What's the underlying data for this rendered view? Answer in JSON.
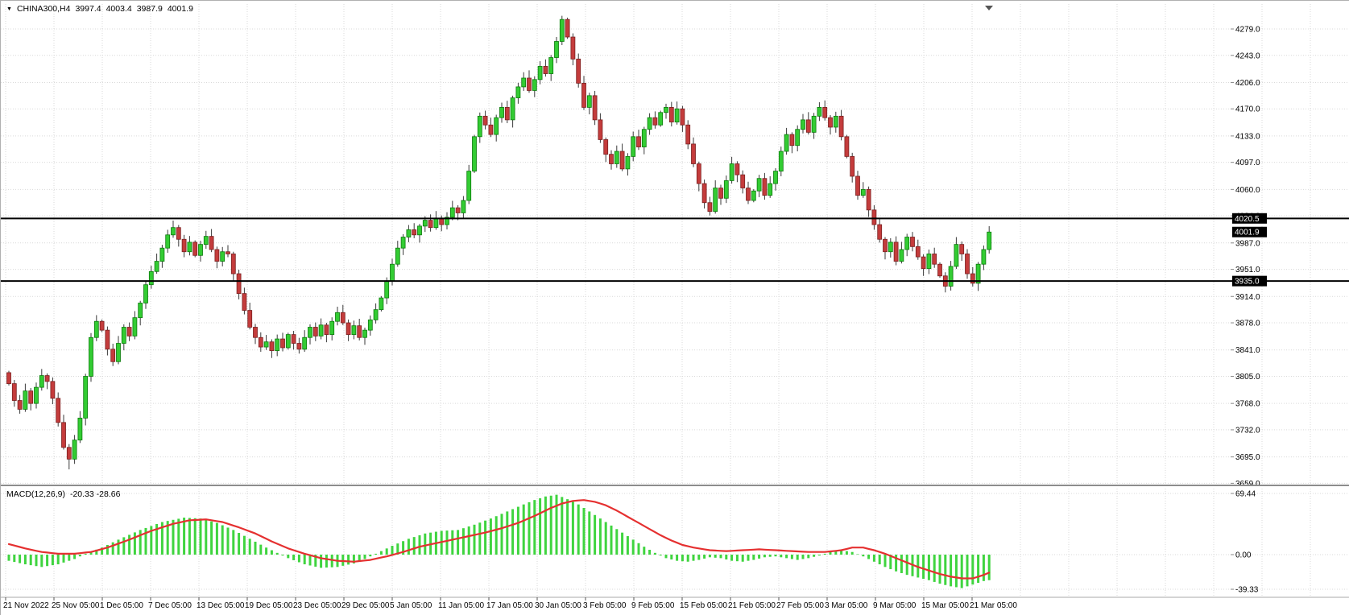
{
  "header": {
    "symbol": "CHINA300,H4",
    "open": "3997.4",
    "high": "4003.4",
    "low": "3987.9",
    "close": "4001.9"
  },
  "icons": {
    "dropdown": "▼"
  },
  "colors": {
    "background": "#ffffff",
    "grid": "#d9d9d9",
    "candle_up": "#33cc33",
    "candle_up_border": "#0b7a0b",
    "candle_down": "#c43c3c",
    "candle_down_border": "#7a1f1f",
    "wick": "#3a3a3a",
    "hline": "#000000",
    "badge_bg": "#000000",
    "badge_text": "#ffffff",
    "macd_histogram": "#3fd43f",
    "macd_signal": "#e53030",
    "text": "#000000",
    "separator": "#8c8c8c"
  },
  "chart_data": {
    "type": "candlestick",
    "title": "CHINA300,H4",
    "timeframe": "H4",
    "open_first": 3810,
    "closes": [
      3795,
      3772,
      3760,
      3785,
      3768,
      3790,
      3806,
      3798,
      3775,
      3742,
      3708,
      3692,
      3718,
      3748,
      3805,
      3858,
      3880,
      3868,
      3842,
      3825,
      3850,
      3872,
      3860,
      3885,
      3905,
      3930,
      3948,
      3962,
      3980,
      3998,
      4008,
      3992,
      3975,
      3988,
      3970,
      3985,
      3996,
      3978,
      3962,
      3975,
      3972,
      3945,
      3918,
      3895,
      3872,
      3858,
      3845,
      3852,
      3840,
      3856,
      3844,
      3862,
      3850,
      3842,
      3858,
      3872,
      3860,
      3875,
      3862,
      3880,
      3892,
      3878,
      3862,
      3874,
      3858,
      3868,
      3882,
      3896,
      3912,
      3935,
      3958,
      3980,
      3995,
      4005,
      3998,
      4010,
      4018,
      4008,
      4020,
      4012,
      4022,
      4035,
      4028,
      4045,
      4085,
      4132,
      4160,
      4148,
      4135,
      4158,
      4172,
      4155,
      4185,
      4200,
      4212,
      4195,
      4210,
      4228,
      4218,
      4240,
      4262,
      4292,
      4268,
      4238,
      4205,
      4172,
      4188,
      4155,
      4128,
      4108,
      4095,
      4112,
      4088,
      4105,
      4132,
      4118,
      4142,
      4158,
      4148,
      4165,
      4172,
      4152,
      4170,
      4148,
      4122,
      4095,
      4068,
      4042,
      4030,
      4062,
      4048,
      4072,
      4095,
      4080,
      4062,
      4045,
      4058,
      4075,
      4052,
      4068,
      4085,
      4112,
      4135,
      4120,
      4142,
      4155,
      4138,
      4160,
      4172,
      4158,
      4145,
      4160,
      4132,
      4105,
      4078,
      4052,
      4060,
      4032,
      4012,
      3992,
      3975,
      3988,
      3962,
      3978,
      3995,
      3982,
      3968,
      3952,
      3972,
      3958,
      3942,
      3928,
      3955,
      3985,
      3972,
      3945,
      3932,
      3958,
      3978,
      4001.9
    ],
    "wick_overrides": {
      "11": {
        "low": 3678
      },
      "101": {
        "high": 4297
      }
    },
    "price_axis": {
      "ticks": [
        4279,
        4243,
        4206,
        4170,
        4133,
        4097,
        4060,
        4024,
        3987,
        3951,
        3914,
        3878,
        3841,
        3805,
        3768,
        3732,
        3695,
        3659
      ]
    },
    "time_axis": {
      "labels": [
        "21 Nov 2022",
        "25 Nov 05:00",
        "1 Dec 05:00",
        "7 Dec 05:00",
        "13 Dec 05:00",
        "19 Dec 05:00",
        "23 Dec 05:00",
        "29 Dec 05:00",
        "5 Jan 05:00",
        "11 Jan 05:00",
        "17 Jan 05:00",
        "30 Jan 05:00",
        "3 Feb 05:00",
        "9 Feb 05:00",
        "15 Feb 05:00",
        "21 Feb 05:00",
        "27 Feb 05:00",
        "3 Mar 05:00",
        "9 Mar 05:00",
        "15 Mar 05:00",
        "21 Mar 05:00"
      ]
    },
    "hlines": [
      {
        "price": 4020.5,
        "label": "4020.5"
      },
      {
        "price": 3935.0,
        "label": "3935.0"
      }
    ],
    "current_price": {
      "price": 4001.9,
      "label": "4001.9"
    },
    "macd": {
      "name": "MACD(12,26,9)",
      "values": "-20.33 -28.66",
      "ticks": [
        69.44,
        0.0,
        -39.33
      ],
      "signal_waypoints": [
        [
          0,
          12
        ],
        [
          3,
          7
        ],
        [
          6,
          3
        ],
        [
          9,
          1
        ],
        [
          12,
          1
        ],
        [
          15,
          3
        ],
        [
          18,
          8
        ],
        [
          22,
          17
        ],
        [
          26,
          27
        ],
        [
          30,
          35
        ],
        [
          33,
          39
        ],
        [
          36,
          40
        ],
        [
          39,
          37
        ],
        [
          42,
          31
        ],
        [
          45,
          24
        ],
        [
          48,
          15
        ],
        [
          51,
          7
        ],
        [
          54,
          1
        ],
        [
          57,
          -4
        ],
        [
          60,
          -7
        ],
        [
          63,
          -8
        ],
        [
          66,
          -6
        ],
        [
          69,
          -2
        ],
        [
          72,
          3
        ],
        [
          75,
          9
        ],
        [
          78,
          13
        ],
        [
          81,
          17
        ],
        [
          84,
          21
        ],
        [
          87,
          25
        ],
        [
          90,
          30
        ],
        [
          93,
          36
        ],
        [
          96,
          44
        ],
        [
          99,
          53
        ],
        [
          101,
          58
        ],
        [
          103,
          61
        ],
        [
          105,
          62
        ],
        [
          107,
          60
        ],
        [
          109,
          56
        ],
        [
          111,
          50
        ],
        [
          113,
          43
        ],
        [
          115,
          36
        ],
        [
          117,
          29
        ],
        [
          119,
          22
        ],
        [
          121,
          16
        ],
        [
          123,
          11
        ],
        [
          125,
          8
        ],
        [
          128,
          5
        ],
        [
          131,
          4
        ],
        [
          134,
          5
        ],
        [
          137,
          6
        ],
        [
          140,
          5
        ],
        [
          143,
          4
        ],
        [
          146,
          3
        ],
        [
          149,
          3
        ],
        [
          152,
          5
        ],
        [
          154,
          8
        ],
        [
          156,
          8
        ],
        [
          158,
          5
        ],
        [
          160,
          1
        ],
        [
          162,
          -4
        ],
        [
          164,
          -9
        ],
        [
          166,
          -14
        ],
        [
          168,
          -18
        ],
        [
          170,
          -22
        ],
        [
          172,
          -25
        ],
        [
          174,
          -27
        ],
        [
          176,
          -27
        ],
        [
          178,
          -23
        ],
        [
          179,
          -20.5
        ]
      ],
      "histogram_waypoints": [
        [
          0,
          -7
        ],
        [
          3,
          -11
        ],
        [
          6,
          -14
        ],
        [
          9,
          -11
        ],
        [
          12,
          -5
        ],
        [
          14,
          1
        ],
        [
          17,
          8
        ],
        [
          20,
          17
        ],
        [
          24,
          28
        ],
        [
          28,
          37
        ],
        [
          32,
          42
        ],
        [
          35,
          41
        ],
        [
          38,
          36
        ],
        [
          41,
          28
        ],
        [
          44,
          18
        ],
        [
          47,
          8
        ],
        [
          49,
          2
        ],
        [
          51,
          -4
        ],
        [
          54,
          -11
        ],
        [
          57,
          -15
        ],
        [
          60,
          -14
        ],
        [
          63,
          -10
        ],
        [
          65,
          -5
        ],
        [
          67,
          1
        ],
        [
          70,
          10
        ],
        [
          73,
          18
        ],
        [
          76,
          24
        ],
        [
          79,
          27
        ],
        [
          82,
          28
        ],
        [
          85,
          34
        ],
        [
          88,
          41
        ],
        [
          91,
          49
        ],
        [
          94,
          57
        ],
        [
          96,
          62
        ],
        [
          98,
          66
        ],
        [
          100,
          68
        ],
        [
          102,
          63
        ],
        [
          104,
          57
        ],
        [
          106,
          49
        ],
        [
          108,
          41
        ],
        [
          110,
          33
        ],
        [
          112,
          25
        ],
        [
          114,
          17
        ],
        [
          116,
          9
        ],
        [
          118,
          2
        ],
        [
          120,
          -4
        ],
        [
          122,
          -7
        ],
        [
          124,
          -8
        ],
        [
          126,
          -6
        ],
        [
          128,
          -3
        ],
        [
          130,
          -4
        ],
        [
          132,
          -7
        ],
        [
          134,
          -8
        ],
        [
          136,
          -6
        ],
        [
          138,
          -3
        ],
        [
          140,
          -2
        ],
        [
          142,
          -4
        ],
        [
          144,
          -6
        ],
        [
          146,
          -4
        ],
        [
          148,
          -1
        ],
        [
          150,
          3
        ],
        [
          152,
          5
        ],
        [
          154,
          3
        ],
        [
          156,
          -2
        ],
        [
          158,
          -8
        ],
        [
          160,
          -14
        ],
        [
          162,
          -19
        ],
        [
          164,
          -23
        ],
        [
          166,
          -26
        ],
        [
          168,
          -29
        ],
        [
          170,
          -33
        ],
        [
          172,
          -36
        ],
        [
          174,
          -38
        ],
        [
          176,
          -34
        ],
        [
          178,
          -30
        ],
        [
          179,
          -29
        ]
      ]
    }
  }
}
